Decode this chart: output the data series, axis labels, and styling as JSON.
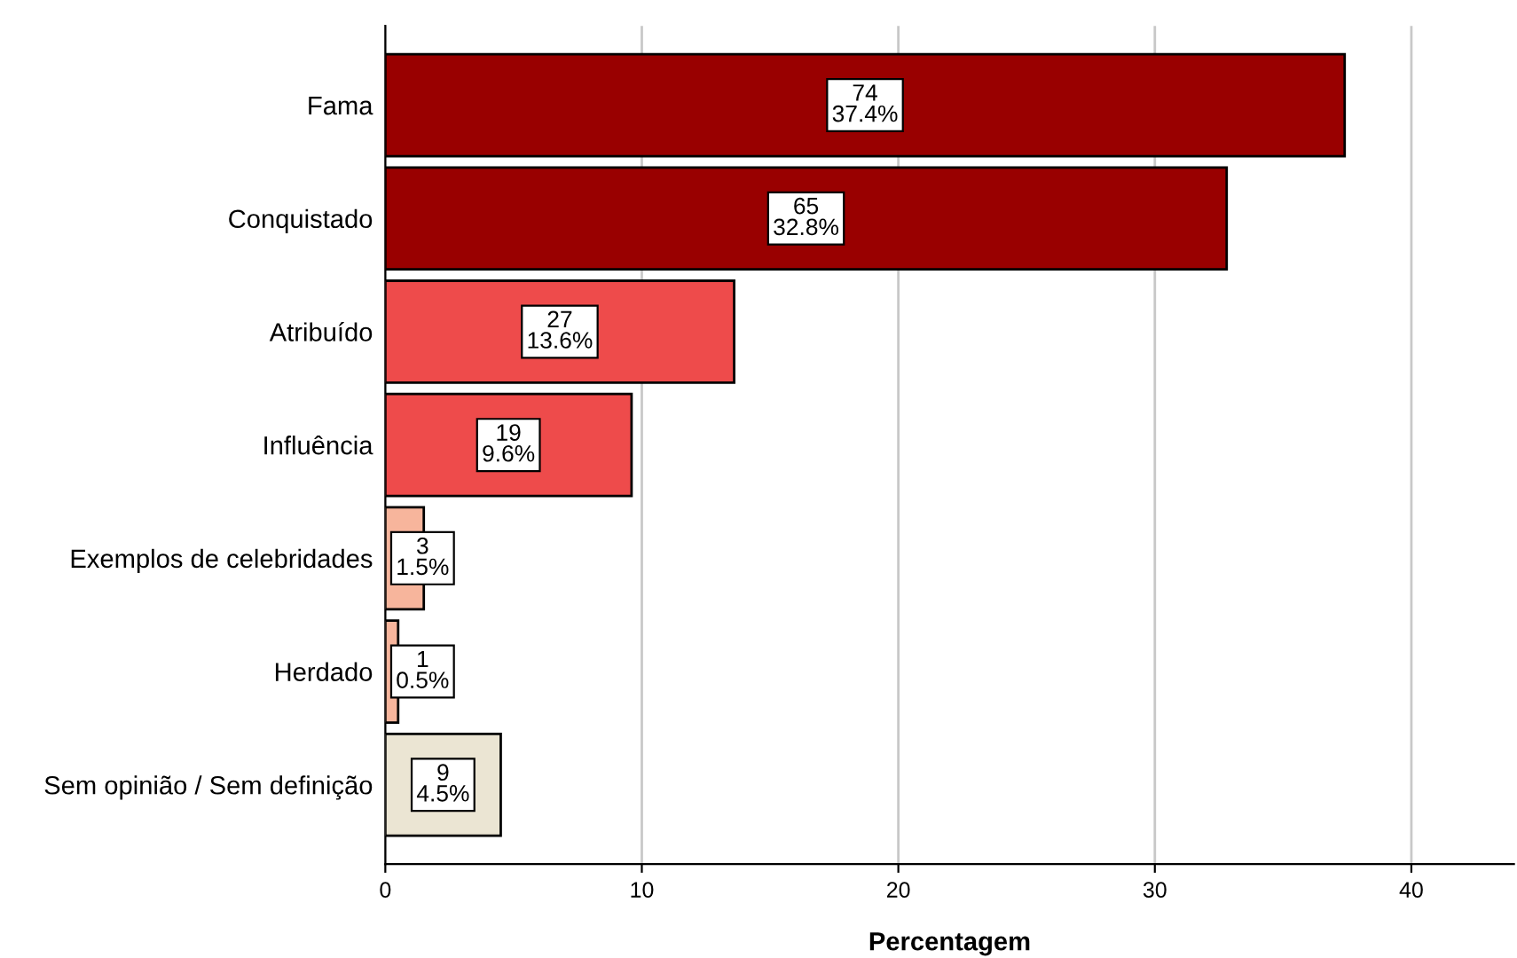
{
  "chart_data": {
    "type": "bar",
    "orientation": "horizontal",
    "xlabel": "Percentagem",
    "categories": [
      "Fama",
      "Conquistado",
      "Atribuído",
      "Influência",
      "Exemplos de celebridades",
      "Herdado",
      "Sem opinião / Sem definição"
    ],
    "values": [
      37.4,
      32.8,
      13.6,
      9.6,
      1.5,
      0.5,
      4.5
    ],
    "colors": [
      "#990000",
      "#990000",
      "#ee4b4b",
      "#ee4b4b",
      "#f7b59c",
      "#f7b59c",
      "#ebe5d3"
    ],
    "value_labels": [
      "74\n37.4%",
      "65\n32.8%",
      "27\n13.6%",
      "19\n9.6%",
      "3\n1.5%",
      "1\n0.5%",
      "9\n4.5%"
    ],
    "xlim": [
      0,
      44
    ],
    "xticks": [
      0,
      10,
      20,
      30,
      40
    ],
    "grid": "x"
  }
}
